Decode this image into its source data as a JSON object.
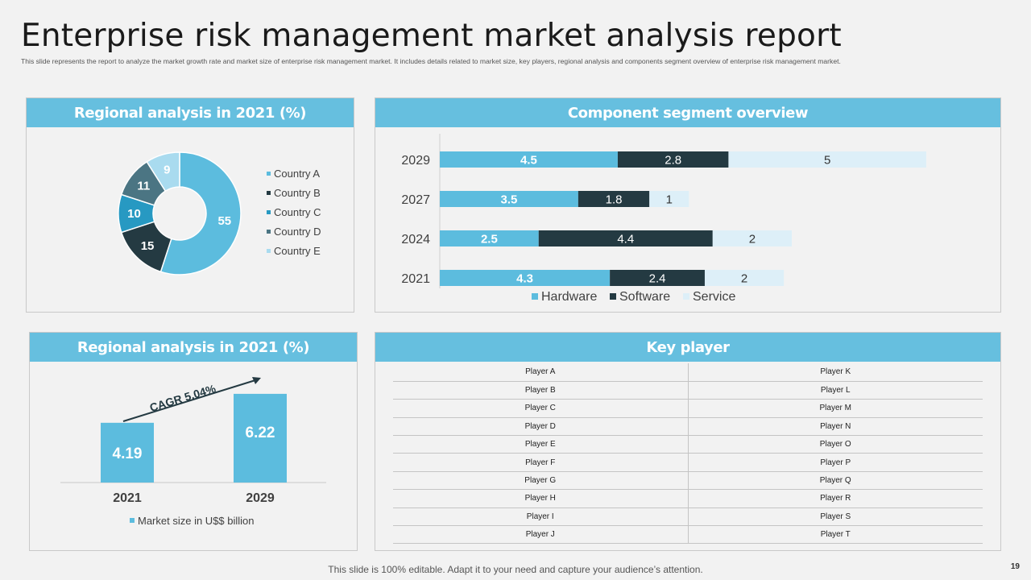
{
  "header": {
    "title": "Enterprise risk management market analysis report",
    "subtitle": "This slide represents the report to analyze the market growth rate and market size of enterprise risk management  market. It includes details related to market size, key players, regional analysis and components segment overview of enterprise risk management  market."
  },
  "panels": {
    "regional_top": "Regional analysis in 2021 (%)",
    "component": "Component segment overview",
    "regional_bottom": "Regional analysis in 2021 (%)",
    "key_player": "Key player"
  },
  "chart_data": [
    {
      "type": "pie",
      "variant": "donut",
      "title": "Regional analysis in 2021 (%)",
      "categories": [
        "Country A",
        "Country B",
        "Country C",
        "Country D",
        "Country E"
      ],
      "values": [
        55,
        15,
        10,
        11,
        9
      ],
      "colors": [
        "#5cbcde",
        "#243a42",
        "#2799c2",
        "#4b7583",
        "#a9dbef"
      ],
      "legend_position": "right"
    },
    {
      "type": "bar",
      "orientation": "horizontal",
      "stacked": true,
      "title": "Component segment overview",
      "categories": [
        "2029",
        "2027",
        "2024",
        "2021"
      ],
      "series": [
        {
          "name": "Hardware",
          "values": [
            4.5,
            3.5,
            2.5,
            4.3
          ],
          "color": "#5cbcde"
        },
        {
          "name": "Software",
          "values": [
            2.8,
            1.8,
            4.4,
            2.4
          ],
          "color": "#243a42"
        },
        {
          "name": "Service",
          "values": [
            5,
            1,
            2,
            2
          ],
          "color": "#ddeff8"
        }
      ],
      "legend_position": "bottom",
      "grid": false
    },
    {
      "type": "bar",
      "title": "Regional analysis in 2021 (%)",
      "categories": [
        "2021",
        "2029"
      ],
      "series": [
        {
          "name": "Market size in U$$ billion",
          "values": [
            4.19,
            6.22
          ],
          "color": "#5cbcde"
        }
      ],
      "annotation": "CAGR 5.04%",
      "legend_position": "bottom",
      "grid": false
    }
  ],
  "key_players": [
    [
      "Player A",
      "Player K"
    ],
    [
      "Player B",
      "Player L"
    ],
    [
      "Player C",
      "Player M"
    ],
    [
      "Player D",
      "Player N"
    ],
    [
      "Player E",
      "Player O"
    ],
    [
      "Player F",
      "Player P"
    ],
    [
      "Player G",
      "Player Q"
    ],
    [
      "Player H",
      "Player R"
    ],
    [
      "Player I",
      "Player S"
    ],
    [
      "Player J",
      "Player T"
    ]
  ],
  "footer": {
    "note": "This slide is 100% editable. Adapt it to your need and capture your audience’s attention.",
    "page": "19"
  }
}
